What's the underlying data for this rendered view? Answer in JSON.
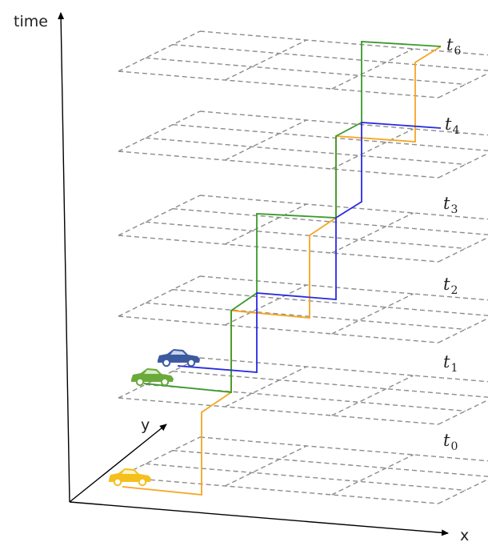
{
  "axes": {
    "time_label": "time",
    "x_label": "x",
    "y_label": "y"
  },
  "layers": [
    {
      "time": "t",
      "sub": "0"
    },
    {
      "time": "t",
      "sub": "1"
    },
    {
      "time": "t",
      "sub": "2"
    },
    {
      "time": "t",
      "sub": "3"
    },
    {
      "time": "t",
      "sub": "4"
    },
    {
      "time": "t",
      "sub": "6"
    }
  ],
  "vehicles": [
    {
      "name": "yellow-car",
      "color": "#f4c01e"
    },
    {
      "name": "green-car",
      "color": "#6aaa3a"
    },
    {
      "name": "blue-car",
      "color": "#3c5a9e"
    }
  ],
  "trajectory_colors": {
    "orange": "#f5a623",
    "green": "#3a9a2a",
    "blue": "#2a2ae0"
  }
}
